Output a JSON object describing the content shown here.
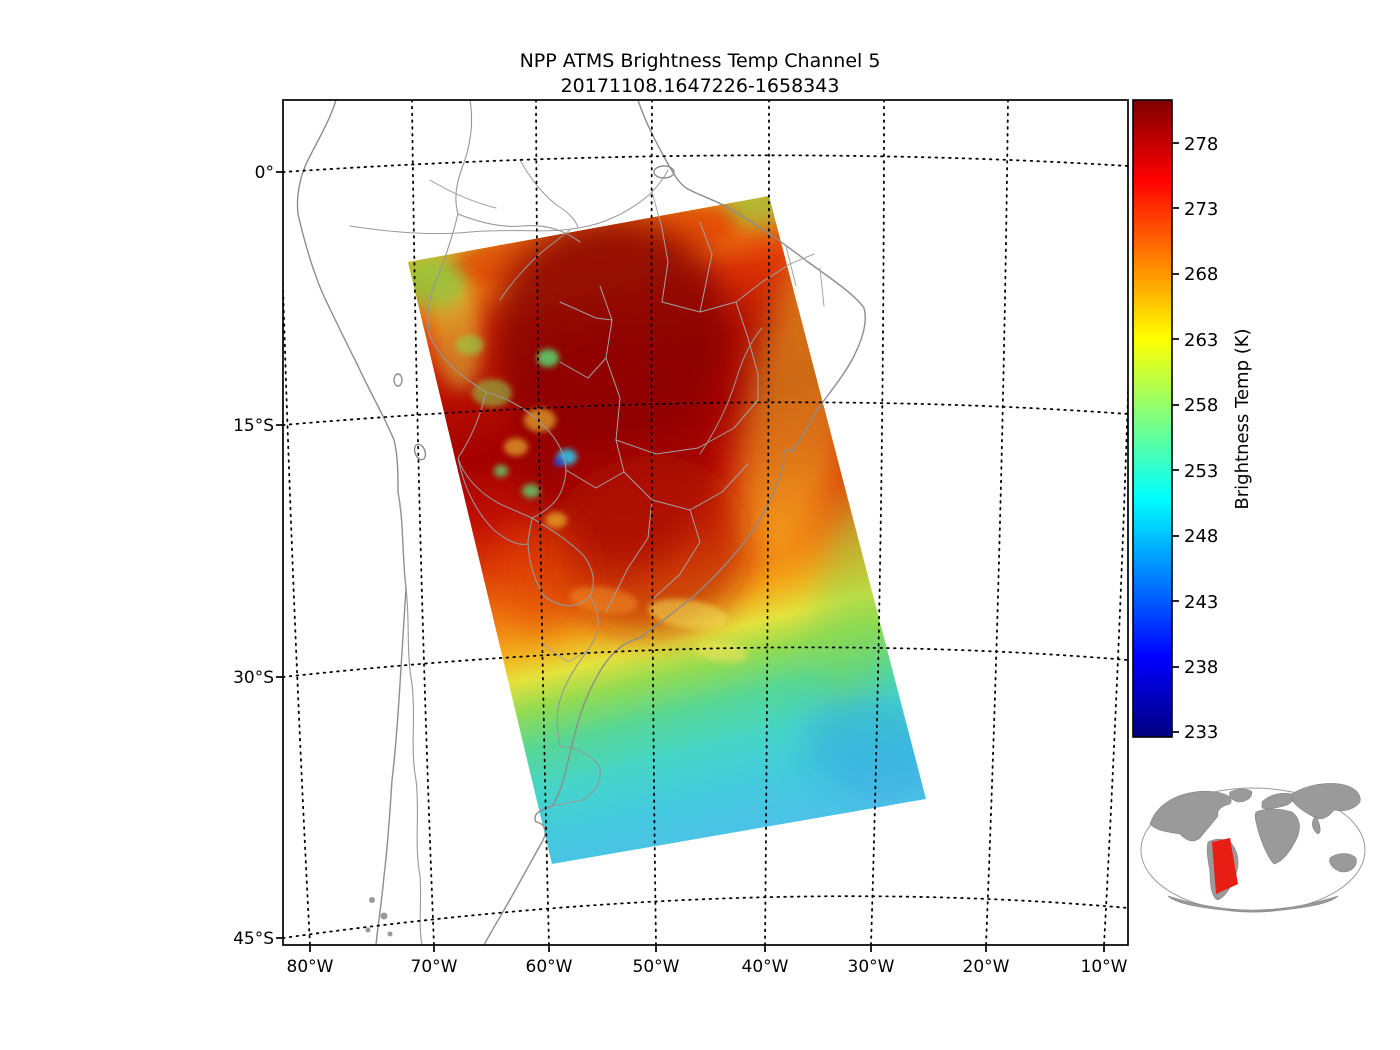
{
  "title": "NPP ATMS Brightness Temp Channel 5",
  "subtitle": "20171108.1647226-1658343",
  "axes": {
    "x_ticks": [
      "80°W",
      "70°W",
      "60°W",
      "50°W",
      "40°W",
      "30°W",
      "20°W",
      "10°W"
    ],
    "y_ticks": [
      "0°",
      "15°S",
      "30°S",
      "45°S"
    ]
  },
  "colorbar": {
    "label": "Brightness Temp (K)",
    "ticks": [
      "278",
      "273",
      "268",
      "263",
      "258",
      "253",
      "248",
      "243",
      "238",
      "233"
    ]
  },
  "chart_data": {
    "type": "heatmap",
    "title": "NPP ATMS Brightness Temp Channel 5",
    "time_range": "20171108.1647226-1658343",
    "variable": "Brightness Temp (K)",
    "lon_ticks_deg": [
      -80,
      -70,
      -60,
      -50,
      -40,
      -30,
      -20,
      -10
    ],
    "lat_ticks_deg": [
      0,
      -15,
      -30,
      -45
    ],
    "colorbar_ticks_K": [
      278,
      273,
      268,
      263,
      258,
      253,
      248,
      243,
      238,
      233
    ],
    "colorbar_range_K": [
      233,
      281
    ],
    "approx_data_range_K": [
      246,
      280
    ],
    "swath_footprint_corners_lonlat_est": [
      [
        -71,
        -6
      ],
      [
        -40,
        -2.5
      ],
      [
        -25,
        -39
      ],
      [
        -60,
        -42.5
      ]
    ],
    "colormap": {
      "name": "jet",
      "stops": [
        {
          "pos": 0.0,
          "color": "#00007f"
        },
        {
          "pos": 0.125,
          "color": "#0000ff"
        },
        {
          "pos": 0.375,
          "color": "#00ffff"
        },
        {
          "pos": 0.625,
          "color": "#ffff00"
        },
        {
          "pos": 0.875,
          "color": "#ff0000"
        },
        {
          "pos": 1.0,
          "color": "#7f0000"
        }
      ]
    },
    "swath_along_track_profile": [
      {
        "pos": 0.0,
        "color": "#d8b428"
      },
      {
        "pos": 0.05,
        "color": "#ee7d14"
      },
      {
        "pos": 0.12,
        "color": "#dd3305"
      },
      {
        "pos": 0.22,
        "color": "#b30d00"
      },
      {
        "pos": 0.32,
        "color": "#a50000"
      },
      {
        "pos": 0.42,
        "color": "#c21202"
      },
      {
        "pos": 0.5,
        "color": "#de3e06"
      },
      {
        "pos": 0.57,
        "color": "#f0740e"
      },
      {
        "pos": 0.63,
        "color": "#f3ab1a"
      },
      {
        "pos": 0.68,
        "color": "#e5e23c"
      },
      {
        "pos": 0.73,
        "color": "#92db52"
      },
      {
        "pos": 0.79,
        "color": "#57d795"
      },
      {
        "pos": 0.86,
        "color": "#46d5c8"
      },
      {
        "pos": 0.93,
        "color": "#43cadd"
      },
      {
        "pos": 1.0,
        "color": "#4cc2e6"
      }
    ]
  }
}
